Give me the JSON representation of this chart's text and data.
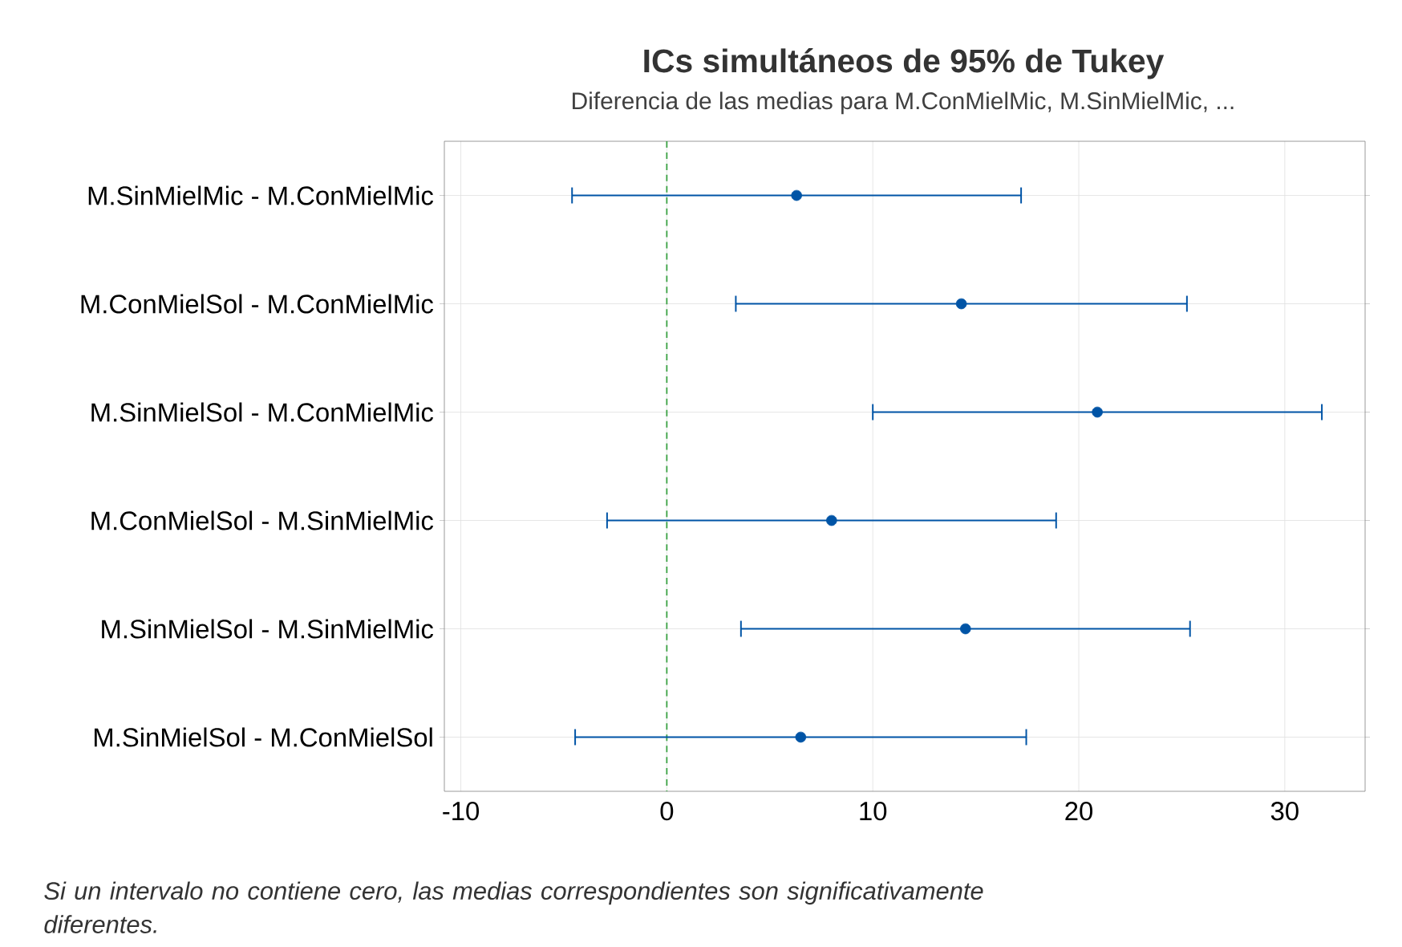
{
  "chart_data": {
    "type": "scatter",
    "orientation": "horizontal",
    "title": "ICs simultáneos de 95% de Tukey",
    "subtitle": "Diferencia de las medias para M.ConMielMic, M.SinMielMic, ...",
    "categories": [
      "M.SinMielMic - M.ConMielMic",
      "M.ConMielSol - M.ConMielMic",
      "M.SinMielSol - M.ConMielMic",
      "M.ConMielSol - M.SinMielMic",
      "M.SinMielSol - M.SinMielMic",
      "M.SinMielSol - M.ConMielSol"
    ],
    "values": [
      6.3,
      14.3,
      20.9,
      8.0,
      14.5,
      6.5
    ],
    "errors": [
      10.9,
      10.95,
      10.9,
      10.9,
      10.9,
      10.95
    ],
    "color": "#0054a6",
    "marker": "circle",
    "xlim": [
      -10.8,
      33.9
    ],
    "xticks": [
      -10,
      0,
      10,
      20,
      30
    ],
    "grid": true,
    "ref_lines": [
      {
        "axis": "x",
        "value": 0,
        "color": "#3aa142",
        "line_style": "dashed"
      }
    ],
    "annotations": [
      "Si un intervalo no contiene cero, las medias correspondientes son significativamente diferentes."
    ]
  }
}
